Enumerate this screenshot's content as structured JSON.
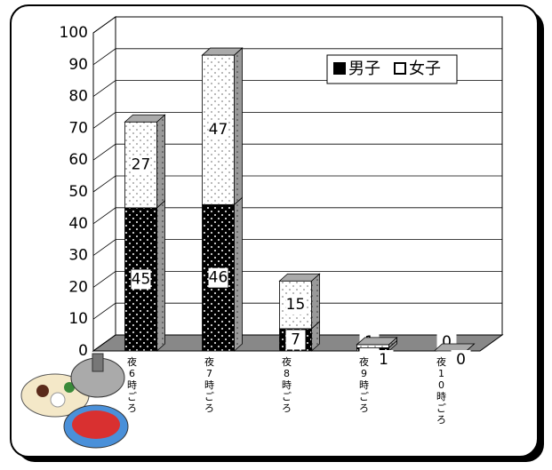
{
  "chart_data": {
    "type": "bar",
    "stacked": true,
    "categories": [
      "夜6時ごろ",
      "夜7時ごろ",
      "夜8時ごろ",
      "夜9時ごろ",
      "夜10時ごろ"
    ],
    "series": [
      {
        "name": "男子",
        "color": "#000000",
        "values": [
          45,
          46,
          7,
          1,
          0
        ]
      },
      {
        "name": "女子",
        "color": "#ffffff",
        "values": [
          27,
          47,
          15,
          1,
          0
        ]
      }
    ],
    "ylim": [
      0,
      100
    ],
    "yticks": [
      0,
      10,
      20,
      30,
      40,
      50,
      60,
      70,
      80,
      90,
      100
    ],
    "grid": true,
    "legend": "top-right"
  }
}
